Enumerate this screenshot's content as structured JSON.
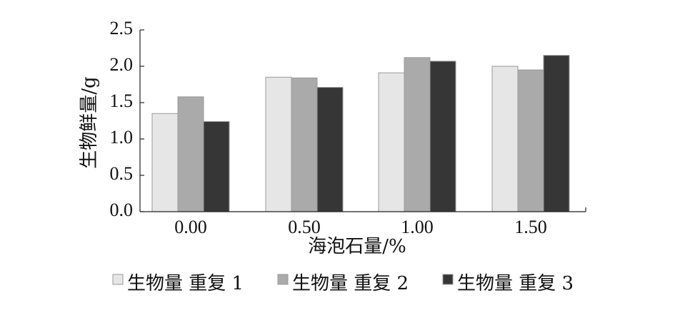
{
  "chart_data": {
    "type": "bar",
    "categories": [
      "0.00",
      "0.50",
      "1.00",
      "1.50"
    ],
    "series": [
      {
        "name": "生物量 重复 1",
        "color": "#e6e6e6",
        "values": [
          1.35,
          1.85,
          1.91,
          2.0
        ]
      },
      {
        "name": "生物量 重复 2",
        "color": "#aaaaaa",
        "values": [
          1.58,
          1.84,
          2.12,
          1.95
        ]
      },
      {
        "name": "生物量 重复 3",
        "color": "#363636",
        "values": [
          1.24,
          1.71,
          2.07,
          2.15
        ]
      }
    ],
    "yticks": [
      "0.0",
      "0.5",
      "1.0",
      "1.5",
      "2.0",
      "2.5"
    ],
    "ylim": [
      0,
      2.5
    ],
    "xlabel": "海泡石量/%",
    "ylabel": "生物鲜量/g",
    "grid": false,
    "legend_position": "bottom"
  }
}
